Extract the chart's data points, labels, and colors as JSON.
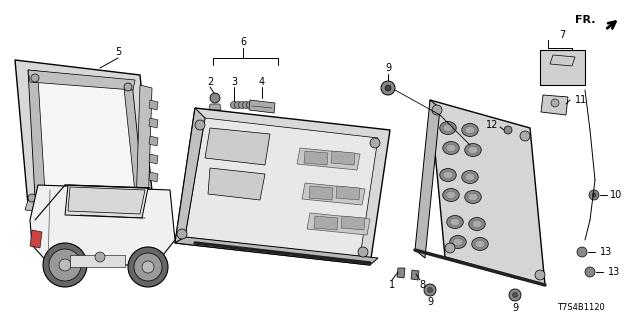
{
  "background_color": "#ffffff",
  "fig_width": 6.4,
  "fig_height": 3.2,
  "dpi": 100,
  "diagram_code": "T7S4B1120",
  "label_fontsize": 7,
  "fr_fontsize": 8,
  "code_fontsize": 6,
  "line_color": "#000000",
  "part_color": "#e8e8e8",
  "dark_part": "#999999"
}
